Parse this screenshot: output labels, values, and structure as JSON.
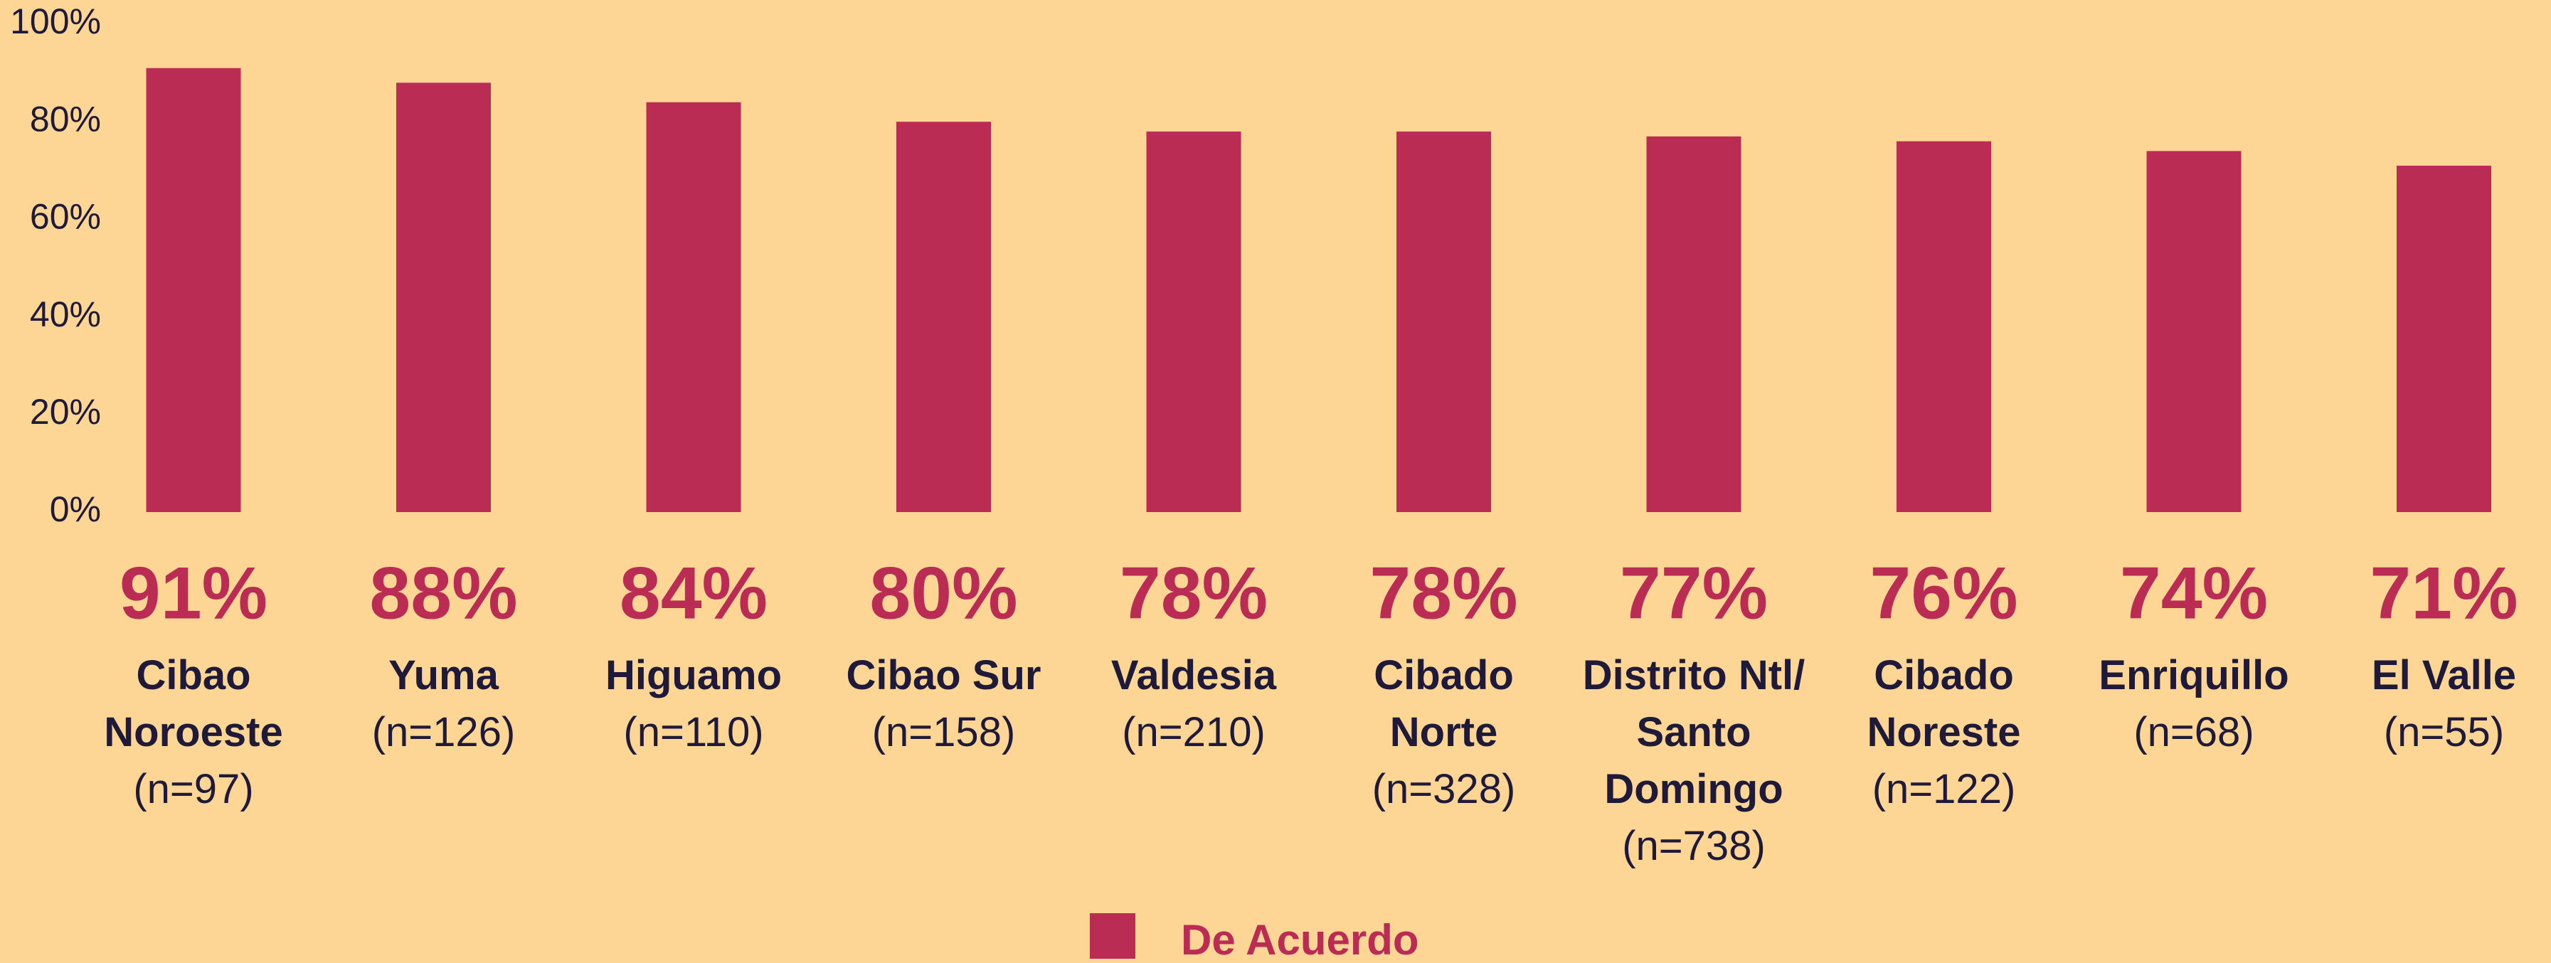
{
  "chart_data": {
    "type": "bar",
    "categories": [
      "Cibao Noroeste",
      "Yuma",
      "Higuamo",
      "Cibao Sur",
      "Valdesia",
      "Cibado Norte",
      "Distrito Ntl/ Santo Domingo",
      "Cibado Noreste",
      "Enriquillo",
      "El Valle"
    ],
    "sample_sizes": [
      "(n=97)",
      "(n=126)",
      "(n=110)",
      "(n=158)",
      "(n=210)",
      "(n=328)",
      "(n=738)",
      "(n=122)",
      "(n=68)",
      "(n=55)"
    ],
    "series": [
      {
        "name": "De Acuerdo",
        "color": "#bb2c54",
        "values": [
          91,
          88,
          84,
          80,
          78,
          78,
          77,
          76,
          74,
          71
        ],
        "value_labels": [
          "91%",
          "88%",
          "84%",
          "80%",
          "78%",
          "78%",
          "77%",
          "76%",
          "74%",
          "71%"
        ]
      }
    ],
    "ylim": [
      0,
      100
    ],
    "yticks": [
      {
        "value": 0,
        "label": "0%"
      },
      {
        "value": 20,
        "label": "20%"
      },
      {
        "value": 40,
        "label": "40%"
      },
      {
        "value": 60,
        "label": "60%"
      },
      {
        "value": 80,
        "label": "80%"
      },
      {
        "value": 100,
        "label": "100%"
      }
    ],
    "grid": false,
    "legend": "bottom"
  }
}
